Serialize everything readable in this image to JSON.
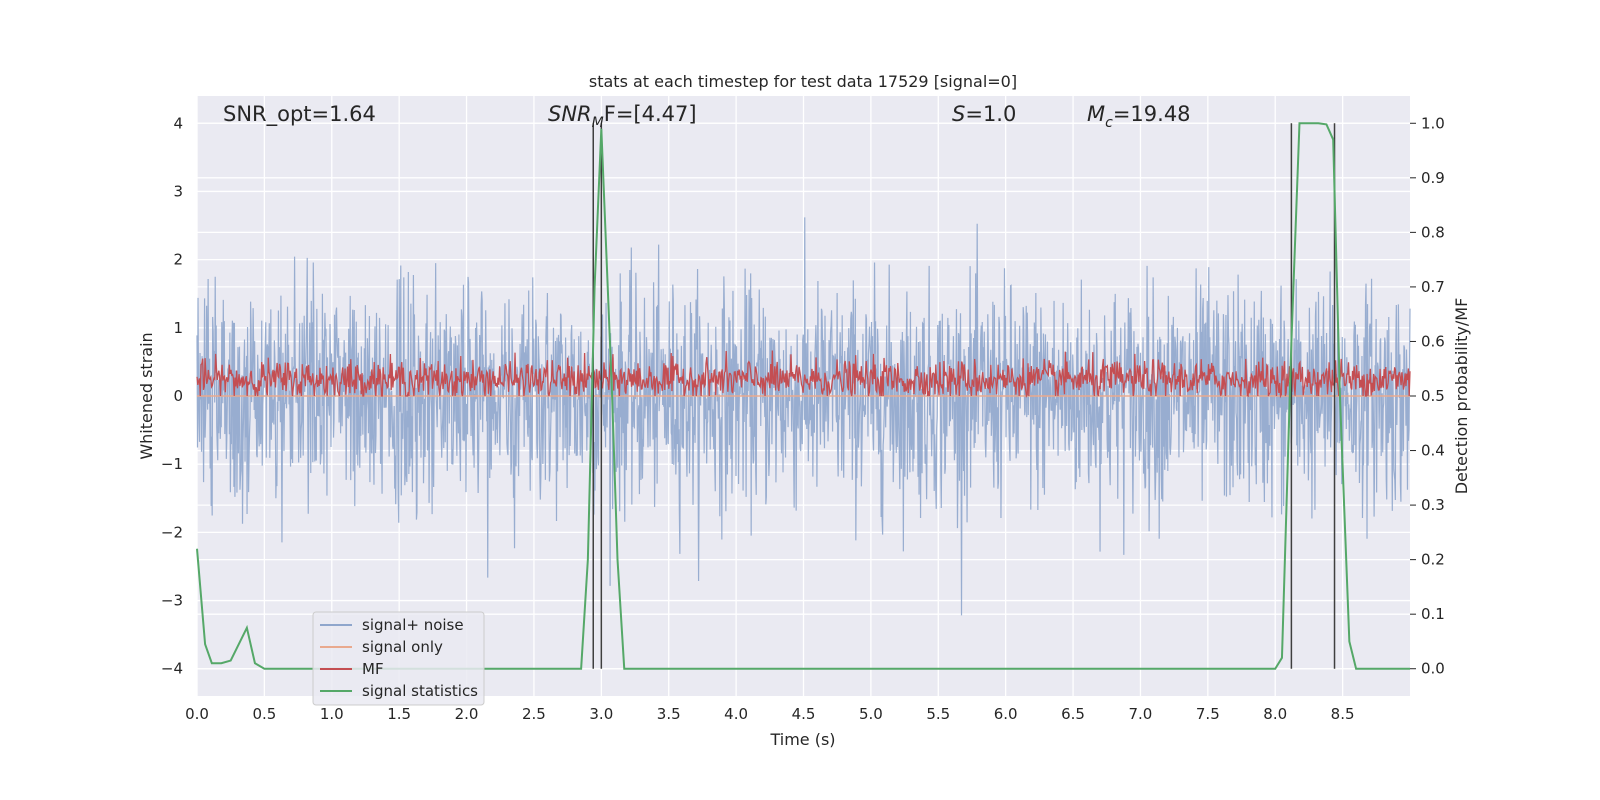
{
  "chart_data": {
    "type": "line",
    "title": "stats at each timestep for test data 17529 [signal=0]",
    "xlabel": "Time (s)",
    "ylabel": "Whitened strain",
    "ylabel_right": "Detection probability/MF",
    "xlim": [
      0.0,
      9.0
    ],
    "ylim": [
      -4.4,
      4.4
    ],
    "ylim_right": [
      -0.05,
      1.05
    ],
    "x_ticks": [
      0.0,
      0.5,
      1.0,
      1.5,
      2.0,
      2.5,
      3.0,
      3.5,
      4.0,
      4.5,
      5.0,
      5.5,
      6.0,
      6.5,
      7.0,
      7.5,
      8.0,
      8.5
    ],
    "x_tick_labels": [
      "0.0",
      "0.5",
      "1.0",
      "1.5",
      "2.0",
      "2.5",
      "3.0",
      "3.5",
      "4.0",
      "4.5",
      "5.0",
      "5.5",
      "6.0",
      "6.5",
      "7.0",
      "7.5",
      "8.0",
      "8.5"
    ],
    "y_ticks": [
      -4,
      -3,
      -2,
      -1,
      0,
      1,
      2,
      3,
      4
    ],
    "y_tick_labels": [
      "−4",
      "−3",
      "−2",
      "−1",
      "0",
      "1",
      "2",
      "3",
      "4"
    ],
    "y_ticks_right": [
      0.0,
      0.1,
      0.2,
      0.3,
      0.4,
      0.5,
      0.6,
      0.7,
      0.8,
      0.9,
      1.0
    ],
    "y_tick_labels_right": [
      "0.0",
      "0.1",
      "0.2",
      "0.3",
      "0.4",
      "0.5",
      "0.6",
      "0.7",
      "0.8",
      "0.9",
      "1.0"
    ],
    "annotations": {
      "snr_opt": "SNR_opt=1.64",
      "snr_mf_base": "SNR",
      "snr_mf_sub": "M",
      "snr_mf_rest": "F=[4.47]",
      "s_italic": "S",
      "s_rest": "=1.0",
      "mc_base": "M",
      "mc_sub": "c",
      "mc_rest": "=19.48"
    },
    "series": [
      {
        "name": "signal+ noise",
        "color": "#8fa6cc",
        "axis": "left",
        "description_stats": {
          "approx_min": -3.9,
          "approx_max": 4.0,
          "approx_std": 0.8
        }
      },
      {
        "name": "signal only",
        "color": "#e9a98e",
        "axis": "left",
        "x": [
          0.0,
          9.0
        ],
        "y": [
          0.0,
          0.0
        ]
      },
      {
        "name": "MF",
        "color": "#c44e52",
        "axis": "right",
        "description_stats": {
          "approx_mean": 0.53,
          "approx_min": 0.5,
          "approx_max": 0.6
        }
      },
      {
        "name": "signal statistics",
        "color": "#55a868",
        "axis": "right",
        "x": [
          0.0,
          0.06,
          0.11,
          0.18,
          0.25,
          0.37,
          0.43,
          0.5,
          1.0,
          2.0,
          2.85,
          2.9,
          2.95,
          3.0,
          3.08,
          3.12,
          3.17,
          3.5,
          5.0,
          6.5,
          8.0,
          8.05,
          8.12,
          8.18,
          8.25,
          8.32,
          8.38,
          8.43,
          8.48,
          8.55,
          8.6,
          8.7,
          9.0
        ],
        "y": [
          0.22,
          0.045,
          0.01,
          0.01,
          0.015,
          0.075,
          0.01,
          0.0,
          0.0,
          0.0,
          0.0,
          0.2,
          0.7,
          0.99,
          0.5,
          0.2,
          0.0,
          0.0,
          0.0,
          0.0,
          0.0,
          0.02,
          0.6,
          1.0,
          1.0,
          1.0,
          0.998,
          0.97,
          0.5,
          0.05,
          0.0,
          0.0,
          0.0
        ]
      }
    ],
    "vertical_lines_x": [
      2.94,
      3.0,
      8.12,
      8.44
    ],
    "legend": {
      "placement": "lower-left",
      "entries": [
        "signal+ noise",
        "signal only",
        "MF",
        "signal statistics"
      ]
    }
  },
  "colors": {
    "axes_bg": "#eaeaf2",
    "grid": "#ffffff",
    "vline": "#3f3f3f"
  }
}
